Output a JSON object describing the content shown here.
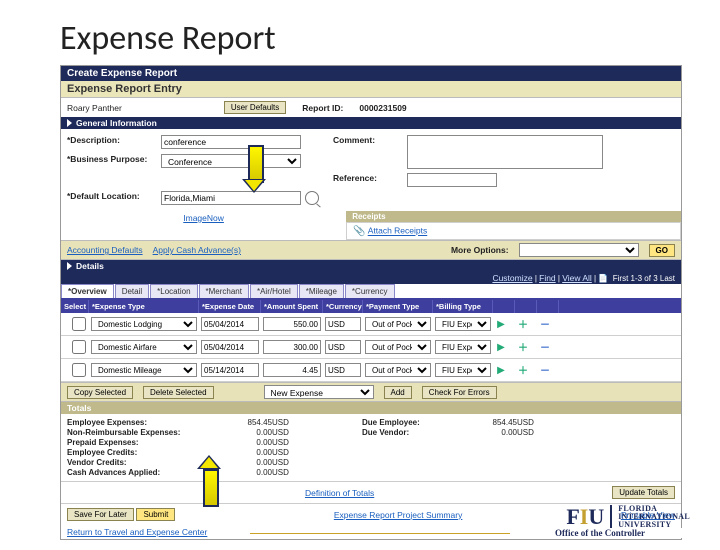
{
  "slide_title": "Expense Report",
  "app": {
    "title": "Create Expense Report",
    "subtitle": "Expense Report Entry",
    "employee": "Roary Panther",
    "user_defaults": "User Defaults",
    "report_id_lbl": "Report ID:",
    "report_id": "0000231509"
  },
  "general": {
    "header": "General Information",
    "descr_lbl": "*Description:",
    "descr": "conference",
    "bp_lbl": "*Business Purpose:",
    "bp": "Conference",
    "defloc_lbl": "*Default Location:",
    "defloc": "Florida,Miami",
    "comment_lbl": "Comment:",
    "reference_lbl": "Reference:",
    "image_now": "ImageNow",
    "receipts_hdr": "Receipts",
    "attach_receipts": "Attach Receipts"
  },
  "links": {
    "acct_def": "Accounting Defaults",
    "apply_cash": "Apply Cash Advance(s)"
  },
  "more": {
    "label": "More Options:",
    "go": "GO"
  },
  "details": {
    "header": "Details",
    "toolbar": {
      "customize": "Customize",
      "find": "Find",
      "view_all": "View All",
      "first_last": "First 1-3 of 3 Last"
    },
    "tabs": [
      "*Overview",
      "Detail",
      "*Location",
      "*Merchant",
      "*Air/Hotel",
      "*Mileage",
      "*Currency"
    ],
    "cols": [
      "Select",
      "*Expense Type",
      "*Expense Date",
      "*Amount Spent",
      "*Currency",
      "*Payment Type",
      "*Billing Type",
      "",
      "",
      ""
    ],
    "rows": [
      {
        "type": "Domestic Lodging",
        "date": "05/04/2014",
        "amt": "550.00",
        "cur": "USD",
        "pay": "Out of Pocket",
        "bill": "FIU Expe"
      },
      {
        "type": "Domestic Airfare",
        "date": "05/04/2014",
        "amt": "300.00",
        "cur": "USD",
        "pay": "Out of Pocket",
        "bill": "FIU Expe"
      },
      {
        "type": "Domestic Mileage",
        "date": "05/14/2014",
        "amt": "4.45",
        "cur": "USD",
        "pay": "Out of Pocket",
        "bill": "FIU Expe"
      }
    ],
    "actions": {
      "copy": "Copy Selected",
      "del": "Delete Selected",
      "new": "New Expense",
      "add": "Add",
      "check": "Check For Errors"
    }
  },
  "totals": {
    "header": "Totals",
    "rows": [
      {
        "l": "Employee Expenses:",
        "v": "854.45",
        "c": "USD",
        "r": "Due Employee:",
        "rv": "854.45",
        "rc": "USD"
      },
      {
        "l": "Non-Reimbursable Expenses:",
        "v": "0.00",
        "c": "USD",
        "r": "Due Vendor:",
        "rv": "0.00",
        "rc": "USD"
      },
      {
        "l": "Prepaid Expenses:",
        "v": "0.00",
        "c": "USD"
      },
      {
        "l": "Employee Credits:",
        "v": "0.00",
        "c": "USD"
      },
      {
        "l": "Vendor Credits:",
        "v": "0.00",
        "c": "USD"
      },
      {
        "l": "Cash Advances Applied:",
        "v": "0.00",
        "c": "USD"
      }
    ],
    "def_link": "Definition of Totals",
    "update": "Update Totals"
  },
  "footer": {
    "save": "Save For Later",
    "submit": "Submit",
    "proj": "Expense Report Project Summary",
    "print": "Printable View",
    "return": "Return to Travel and Expense Center"
  },
  "branding": {
    "univ1": "FLORIDA",
    "univ2": "INTERNATIONAL",
    "univ3": "UNIVERSITY",
    "office": "Office of the Controller"
  }
}
